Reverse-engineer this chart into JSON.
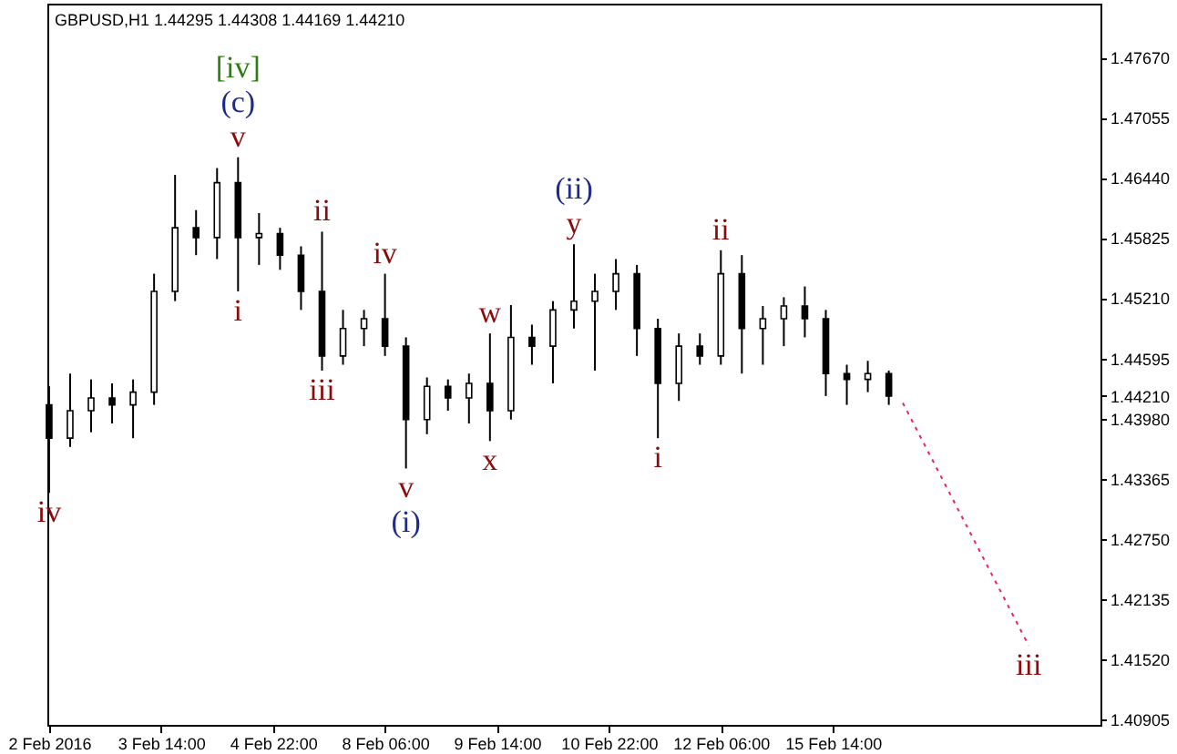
{
  "chart_data": {
    "type": "candlestick",
    "title": "GBPUSD,H1  1.44295 1.44308 1.44169 1.44210",
    "color": "#000000",
    "categories": [
      "2 Feb 2016",
      null,
      null,
      null,
      null,
      null,
      null,
      null,
      null,
      null,
      null,
      null,
      null,
      null,
      null,
      null,
      "3 Feb 14:00",
      null,
      null,
      null,
      null,
      null,
      null,
      null,
      null,
      null,
      null,
      null,
      null,
      null,
      null,
      null,
      "4 Feb 22:00",
      null,
      null,
      null,
      null,
      null,
      null,
      null,
      null,
      null,
      null,
      null,
      null,
      null,
      null,
      null,
      "8 Feb 06:00",
      null,
      null,
      null,
      null,
      null,
      null,
      null,
      null,
      null,
      null,
      null,
      null,
      null,
      null,
      null,
      "9 Feb 14:00",
      null,
      null,
      null,
      null,
      null,
      null,
      null,
      null,
      null,
      null,
      null,
      null,
      null,
      null,
      null,
      "10 Feb 22:00",
      null,
      null,
      null,
      null,
      null,
      null,
      null,
      null,
      null,
      null,
      null,
      null,
      null,
      null,
      null,
      "12 Feb 06:00",
      null,
      null,
      null,
      null,
      null,
      null,
      null,
      null,
      null,
      null,
      null,
      null,
      null,
      null,
      null,
      "15 Feb 14:00",
      null,
      null,
      null,
      null,
      null,
      null,
      null,
      null,
      null,
      null,
      null,
      null,
      null,
      null,
      null,
      null,
      null,
      null,
      null,
      null,
      null,
      null,
      null,
      null,
      null,
      null,
      null,
      null,
      null,
      null,
      null,
      null,
      null,
      null,
      null,
      null,
      null,
      null
    ],
    "ohlc": [
      [
        1.4412,
        1.4431,
        1.4322,
        1.4378
      ],
      null,
      null,
      [
        1.4378,
        1.4444,
        1.4369,
        1.4406
      ],
      null,
      null,
      [
        1.4406,
        1.4438,
        1.4384,
        1.4419
      ],
      null,
      null,
      [
        1.4419,
        1.4434,
        1.4393,
        1.4412
      ],
      null,
      null,
      [
        1.4412,
        1.4438,
        1.4378,
        1.4425
      ],
      null,
      null,
      [
        1.4425,
        1.4546,
        1.4412,
        1.4528
      ],
      null,
      null,
      [
        1.4528,
        1.4647,
        1.4518,
        1.4593
      ],
      null,
      null,
      [
        1.4593,
        1.4611,
        1.4565,
        1.4583
      ],
      null,
      null,
      [
        1.4583,
        1.4654,
        1.4561,
        1.4639
      ],
      null,
      null,
      [
        1.4639,
        1.4665,
        1.4528,
        1.4583
      ],
      null,
      null,
      [
        1.4583,
        1.4608,
        1.4555,
        1.4587
      ],
      null,
      null,
      [
        1.4587,
        1.4593,
        1.455,
        1.4565
      ],
      null,
      null,
      [
        1.4565,
        1.4574,
        1.4509,
        1.4528
      ],
      null,
      null,
      [
        1.4528,
        1.4589,
        1.4447,
        1.4462
      ],
      null,
      null,
      [
        1.4462,
        1.4509,
        1.4453,
        1.449
      ],
      null,
      null,
      [
        1.449,
        1.4509,
        1.4472,
        1.45
      ],
      null,
      null,
      [
        1.45,
        1.4546,
        1.4462,
        1.4472
      ],
      null,
      null,
      [
        1.4472,
        1.4481,
        1.4347,
        1.4397
      ],
      null,
      null,
      [
        1.4397,
        1.444,
        1.4382,
        1.4431
      ],
      null,
      null,
      [
        1.4431,
        1.4438,
        1.4406,
        1.4419
      ],
      null,
      null,
      [
        1.4419,
        1.4444,
        1.4393,
        1.4434
      ],
      null,
      null,
      [
        1.4434,
        1.4485,
        1.4375,
        1.4406
      ],
      null,
      null,
      [
        1.4406,
        1.4514,
        1.4397,
        1.4481
      ],
      null,
      null,
      [
        1.4481,
        1.4494,
        1.4453,
        1.4472
      ],
      null,
      null,
      [
        1.4472,
        1.4518,
        1.4434,
        1.4509
      ],
      null,
      null,
      [
        1.4509,
        1.4576,
        1.449,
        1.4518
      ],
      null,
      null,
      [
        1.4518,
        1.4546,
        1.4447,
        1.4528
      ],
      null,
      null,
      [
        1.4528,
        1.4561,
        1.4509,
        1.4546
      ],
      null,
      null,
      [
        1.4546,
        1.4555,
        1.4462,
        1.449
      ],
      null,
      null,
      [
        1.449,
        1.45,
        1.4378,
        1.4434
      ],
      null,
      null,
      [
        1.4434,
        1.4485,
        1.4416,
        1.4472
      ],
      null,
      null,
      [
        1.4472,
        1.4485,
        1.4453,
        1.4462
      ],
      null,
      null,
      [
        1.4462,
        1.457,
        1.4453,
        1.4546
      ],
      null,
      null,
      [
        1.4546,
        1.4565,
        1.4444,
        1.449
      ],
      null,
      null,
      [
        1.449,
        1.4513,
        1.4453,
        1.45
      ],
      null,
      null,
      [
        1.45,
        1.4522,
        1.4472,
        1.4513
      ],
      null,
      null,
      [
        1.4513,
        1.4533,
        1.4481,
        1.45
      ],
      null,
      null,
      [
        1.45,
        1.4509,
        1.4421,
        1.4444
      ],
      null,
      null,
      [
        1.4444,
        1.4453,
        1.4412,
        1.4438
      ],
      null,
      null,
      [
        1.4438,
        1.4457,
        1.4425,
        1.4444
      ],
      null,
      null,
      [
        1.4444,
        1.4447,
        1.4412,
        1.4421
      ],
      null,
      null,
      null,
      null,
      null,
      null,
      null,
      null,
      null,
      null,
      null,
      null,
      null,
      null,
      null,
      null,
      null,
      null,
      null,
      null,
      null,
      null,
      null,
      null,
      null,
      null,
      null,
      null,
      null,
      null
    ],
    "series": [
      {
        "type": "line",
        "color": "#e8245a",
        "line_style": "dotted",
        "values": [
          null,
          null,
          null,
          null,
          null,
          null,
          null,
          null,
          null,
          null,
          null,
          null,
          null,
          null,
          null,
          null,
          null,
          null,
          null,
          null,
          null,
          null,
          null,
          null,
          null,
          null,
          null,
          null,
          null,
          null,
          null,
          null,
          null,
          null,
          null,
          null,
          null,
          null,
          null,
          null,
          null,
          null,
          null,
          null,
          null,
          null,
          null,
          null,
          null,
          null,
          null,
          null,
          null,
          null,
          null,
          null,
          null,
          null,
          null,
          null,
          null,
          null,
          null,
          null,
          null,
          null,
          null,
          null,
          null,
          null,
          null,
          null,
          null,
          null,
          null,
          null,
          null,
          null,
          null,
          null,
          null,
          null,
          null,
          null,
          null,
          null,
          null,
          null,
          null,
          null,
          null,
          null,
          null,
          null,
          null,
          null,
          null,
          null,
          null,
          null,
          null,
          null,
          null,
          null,
          null,
          null,
          null,
          null,
          null,
          null,
          null,
          null,
          null,
          null,
          null,
          null,
          null,
          null,
          null,
          null,
          null,
          null,
          1.4414,
          null,
          null,
          null,
          null,
          null,
          null,
          null,
          null,
          null,
          null,
          null,
          null,
          null,
          null,
          null,
          null,
          null,
          1.4166,
          null,
          null,
          null,
          null,
          null,
          null,
          null,
          null,
          null,
          null
        ]
      }
    ],
    "annotations": [
      {
        "text": "iv",
        "y": 1.4322
      },
      {
        "text": "v",
        "y": 1.4665
      },
      {
        "text": "(c)",
        "y": 1.4665
      },
      {
        "text": "[iv]",
        "y": 1.4665
      },
      {
        "text": "i",
        "y": 1.4528
      },
      {
        "text": "ii",
        "y": 1.4589
      },
      {
        "text": "iii",
        "y": 1.4447
      },
      {
        "text": "iv",
        "y": 1.4546
      },
      {
        "text": "v",
        "y": 1.4347
      },
      {
        "text": "(i)",
        "y": 1.4347
      },
      {
        "text": "w",
        "y": 1.4485
      },
      {
        "text": "x",
        "y": 1.4375
      },
      {
        "text": "y",
        "y": 1.4576
      },
      {
        "text": "(ii)",
        "y": 1.4576
      },
      {
        "text": "i",
        "y": 1.4378
      },
      {
        "text": "ii",
        "y": 1.457
      },
      {
        "text": "iii",
        "y": 1.4166
      }
    ],
    "ylim": [
      1.4085,
      1.4822
    ],
    "yticks": [
      {
        "value": 1.4767,
        "label": "1.47670"
      },
      {
        "value": 1.47055,
        "label": "1.47055"
      },
      {
        "value": 1.4644,
        "label": "1.46440"
      },
      {
        "value": 1.45825,
        "label": "1.45825"
      },
      {
        "value": 1.4521,
        "label": "1.45210"
      },
      {
        "value": 1.44595,
        "label": "1.44595"
      },
      {
        "value": 1.4421,
        "label": "1.44210"
      },
      {
        "value": 1.4398,
        "label": "1.43980"
      },
      {
        "value": 1.43365,
        "label": "1.43365"
      },
      {
        "value": 1.4275,
        "label": "1.42750"
      },
      {
        "value": 1.42135,
        "label": "1.42135"
      },
      {
        "value": 1.4152,
        "label": "1.41520"
      },
      {
        "value": 1.40905,
        "label": "1.40905"
      }
    ]
  }
}
